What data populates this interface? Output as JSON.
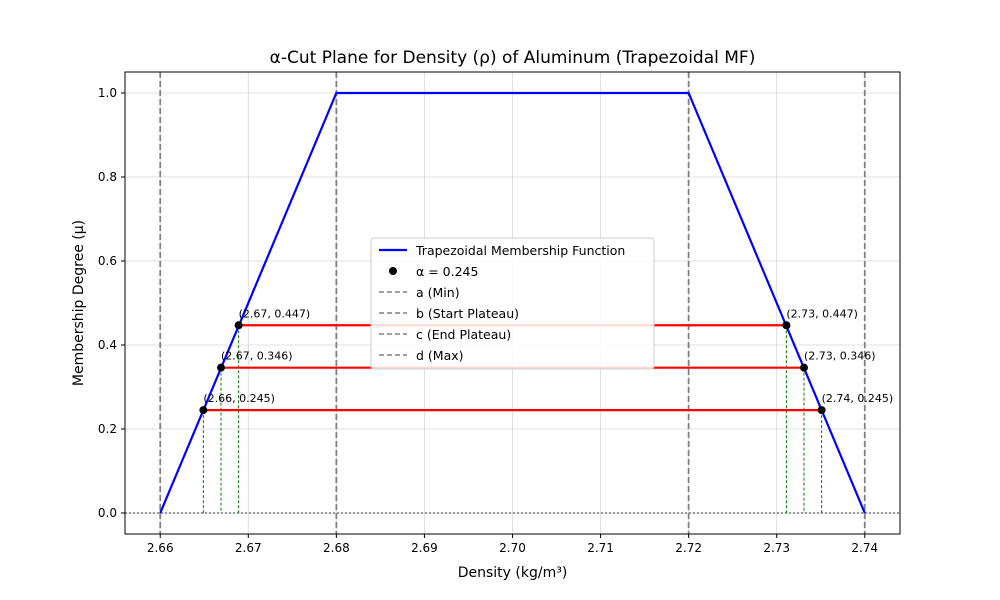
{
  "chart_data": {
    "type": "line",
    "title": "α-Cut Plane for Density (ρ) of Aluminum (Trapezoidal MF)",
    "xlabel": "Density (kg/m³)",
    "ylabel": "Membership Degree (μ)",
    "xlim": [
      2.656,
      2.744
    ],
    "ylim": [
      -0.05,
      1.05
    ],
    "xticks": [
      2.66,
      2.67,
      2.68,
      2.69,
      2.7,
      2.71,
      2.72,
      2.73,
      2.74
    ],
    "xtick_labels": [
      "2.66",
      "2.67",
      "2.68",
      "2.69",
      "2.70",
      "2.71",
      "2.72",
      "2.73",
      "2.74"
    ],
    "yticks": [
      0.0,
      0.2,
      0.4,
      0.6,
      0.8,
      1.0
    ],
    "ytick_labels": [
      "0.0",
      "0.2",
      "0.4",
      "0.6",
      "0.8",
      "1.0"
    ],
    "grid": true,
    "legend_position": "center",
    "membership": {
      "name": "Trapezoidal Membership Function",
      "color": "#0000ff",
      "x": [
        2.66,
        2.68,
        2.72,
        2.74
      ],
      "y": [
        0,
        1,
        1,
        0
      ]
    },
    "params": [
      {
        "name": "a (Min)",
        "x": 2.66
      },
      {
        "name": "b (Start Plateau)",
        "x": 2.68
      },
      {
        "name": "c (End Plateau)",
        "x": 2.72
      },
      {
        "name": "d (Max)",
        "x": 2.74
      }
    ],
    "param_line_color": "#808080",
    "alpha_cuts": [
      {
        "alpha": 0.245,
        "left": 2.6649,
        "right": 2.7351,
        "left_label": "(2.66, 0.245)",
        "right_label": "(2.74, 0.245)"
      },
      {
        "alpha": 0.346,
        "left": 2.6669,
        "right": 2.7331,
        "left_label": "(2.67, 0.346)",
        "right_label": "(2.73, 0.346)"
      },
      {
        "alpha": 0.447,
        "left": 2.6689,
        "right": 2.7311,
        "left_label": "(2.67, 0.447)",
        "right_label": "(2.73, 0.447)"
      }
    ],
    "alpha_legend_label": "α = 0.245",
    "cut_color": "#ff0000",
    "drop_color": "#008000",
    "point_color": "#000000",
    "zero_line_color": "#000000"
  }
}
